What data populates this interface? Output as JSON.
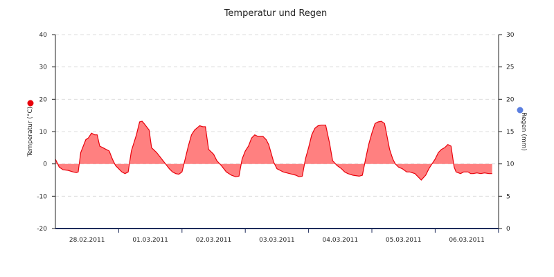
{
  "chart_data": {
    "type": "area",
    "title": "Temperatur und Regen",
    "ylabel_left": "Temperatur (°C)",
    "ylabel_right": "Regen (mm)",
    "ylim_left": [
      -20,
      40
    ],
    "ylim_right": [
      0,
      30
    ],
    "yticks_left": [
      "-20",
      "-10",
      "0",
      "10",
      "20",
      "30",
      "40"
    ],
    "yticks_right": [
      "0",
      "5",
      "10",
      "15",
      "20",
      "25",
      "30"
    ],
    "xtick_labels": [
      "28.02.2011",
      "01.03.2011",
      "02.03.2011",
      "03.03.2011",
      "04.03.2011",
      "05.03.2011",
      "06.03.2011"
    ],
    "grid": true,
    "colors": {
      "temperature_line": "#e8000b",
      "temperature_fill": "#ff8080",
      "rain_marker": "#5b7fe0",
      "xaxis": "#1f2d5c"
    },
    "series": [
      {
        "name": "Temperatur (°C)",
        "x_day_offsets": [
          0,
          0.06,
          0.12,
          0.2,
          0.28,
          0.33,
          0.36,
          0.4,
          0.48,
          0.52,
          0.57,
          0.62,
          0.66,
          0.7,
          0.75,
          0.8,
          0.85,
          0.9,
          0.95,
          1.0,
          1.05,
          1.1,
          1.15,
          1.2,
          1.28,
          1.33,
          1.37,
          1.4,
          1.48,
          1.52,
          1.6,
          1.7,
          1.8,
          1.85,
          1.9,
          1.95,
          2.0,
          2.05,
          2.1,
          2.15,
          2.2,
          2.28,
          2.33,
          2.37,
          2.42,
          2.5,
          2.55,
          2.62,
          2.7,
          2.78,
          2.85,
          2.9,
          2.95,
          3.0,
          3.05,
          3.1,
          3.15,
          3.2,
          3.28,
          3.33,
          3.37,
          3.45,
          3.5,
          3.55,
          3.6,
          3.7,
          3.8,
          3.85,
          3.9,
          3.95,
          4.0,
          4.05,
          4.1,
          4.15,
          4.2,
          4.27,
          4.33,
          4.38,
          4.45,
          4.52,
          4.57,
          4.62,
          4.7,
          4.8,
          4.85,
          4.9,
          4.95,
          5.0,
          5.05,
          5.1,
          5.15,
          5.2,
          5.28,
          5.33,
          5.37,
          5.42,
          5.48,
          5.55,
          5.6,
          5.68,
          5.78,
          5.85,
          5.9,
          5.95,
          6.0,
          6.05,
          6.1,
          6.15,
          6.2,
          6.25,
          6.3,
          6.33,
          6.4,
          6.45,
          6.52,
          6.56,
          6.6,
          6.66,
          6.72,
          6.78,
          6.85,
          6.9
        ],
        "values": [
          1.5,
          -1.0,
          -1.8,
          -2.0,
          -2.5,
          -2.7,
          -2.5,
          3.5,
          7.5,
          8.0,
          9.5,
          9.0,
          9.0,
          5.5,
          5.0,
          4.5,
          4.0,
          1.5,
          -0.5,
          -1.5,
          -2.5,
          -3.0,
          -2.5,
          4.0,
          9.0,
          13.0,
          13.2,
          12.5,
          10.5,
          5.0,
          3.5,
          1.0,
          -1.5,
          -2.5,
          -3.0,
          -3.2,
          -2.5,
          1.5,
          5.5,
          9.0,
          10.5,
          11.8,
          11.5,
          11.5,
          4.5,
          3.0,
          1.0,
          -0.5,
          -2.5,
          -3.5,
          -4.0,
          -3.8,
          1.5,
          4.0,
          5.5,
          8.0,
          9.0,
          8.5,
          8.5,
          7.5,
          6.0,
          0.5,
          -1.5,
          -2.0,
          -2.5,
          -3.0,
          -3.5,
          -4.0,
          -3.8,
          1.5,
          5.0,
          9.0,
          11.0,
          11.8,
          12.0,
          12.0,
          6.5,
          1.0,
          -0.5,
          -1.5,
          -2.5,
          -3.0,
          -3.5,
          -3.8,
          -3.5,
          1.5,
          6.0,
          9.5,
          12.5,
          13.0,
          13.2,
          12.5,
          4.5,
          1.5,
          0.0,
          -1.0,
          -1.5,
          -2.5,
          -2.5,
          -3.0,
          -5.0,
          -3.5,
          -1.5,
          0.0,
          1.5,
          3.5,
          4.5,
          5.0,
          6.0,
          5.5,
          -1.0,
          -2.5,
          -3.0,
          -2.5,
          -2.5,
          -3.0,
          -3.0,
          -2.8,
          -3.0,
          -2.8,
          -3.0,
          -3.0
        ]
      }
    ]
  }
}
